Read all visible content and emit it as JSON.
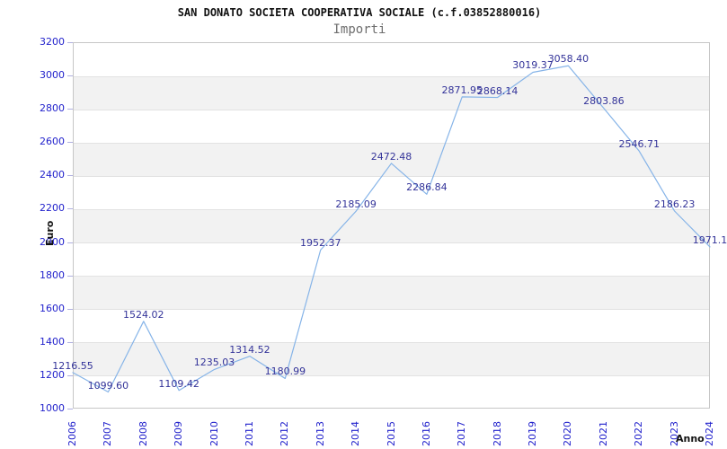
{
  "header": {
    "title": "SAN DONATO SOCIETA COOPERATIVA SOCIALE (c.f.03852880016)",
    "subtitle": "Importi"
  },
  "colors": {
    "line_blue": "#86b4e8",
    "axis_text_blue": "#2222cc",
    "point_label_navy": "#333399",
    "band_gray": "#f2f2f2",
    "grid_line": "#e2e2e2",
    "plot_border": "#c6c6c6",
    "title_black": "#111111",
    "subtitle_gray": "#6e6e6e",
    "tick_mark": "#b0b0e0"
  },
  "chart_data": {
    "type": "line",
    "title": "SAN DONATO SOCIETA COOPERATIVA SOCIALE (c.f.03852880016)",
    "subtitle": "Importi",
    "xlabel": "Anno",
    "ylabel": "Euro",
    "categories": [
      "2006",
      "2007",
      "2008",
      "2009",
      "2010",
      "2011",
      "2012",
      "2013",
      "2014",
      "2015",
      "2016",
      "2017",
      "2018",
      "2019",
      "2020",
      "2021",
      "2022",
      "2023",
      "2024"
    ],
    "series": [
      {
        "name": "Importi",
        "values": [
          1216.55,
          1099.6,
          1524.02,
          1109.42,
          1235.03,
          1314.52,
          1180.99,
          1952.37,
          2185.09,
          2472.48,
          2286.84,
          2871.95,
          2868.14,
          3019.37,
          3058.4,
          2803.86,
          2546.71,
          2186.23,
          1971.1
        ]
      }
    ],
    "point_labels": [
      "1216.55",
      "1099.60",
      "1524.02",
      "1109.42",
      "1235.03",
      "1314.52",
      "1180.99",
      "1952.37",
      "2185.09",
      "2472.48",
      "2286.84",
      "2871.95",
      "2868.14",
      "3019.37",
      "3058.40",
      "2803.86",
      "2546.71",
      "2186.23",
      "1971.1"
    ],
    "ylim": [
      1000,
      3200
    ],
    "ytick_step": 200,
    "yticks": [
      1000,
      1200,
      1400,
      1600,
      1800,
      2000,
      2200,
      2400,
      2600,
      2800,
      3000,
      3200
    ],
    "grid": "horizontal-bands-alternating",
    "legend": "none",
    "markers": "none"
  }
}
